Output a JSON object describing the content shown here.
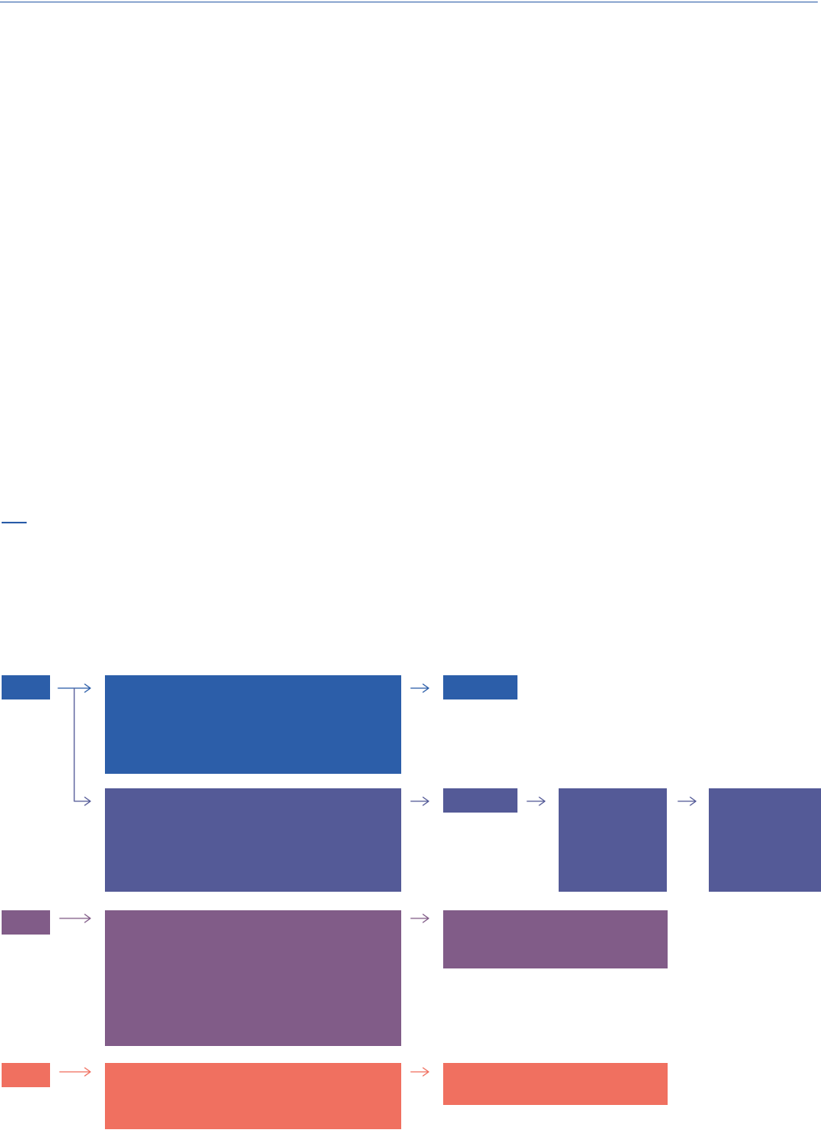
{
  "colors": {
    "rule": "#2c5ea9",
    "row_1": "#2c5ea9",
    "row_2": "#545a97",
    "row_3": "#815c88",
    "row_4": "#f07060"
  },
  "diagram": {
    "rows": [
      {
        "name": "row-1",
        "color_key": "row_1"
      },
      {
        "name": "row-2",
        "color_key": "row_2"
      },
      {
        "name": "row-3",
        "color_key": "row_3"
      },
      {
        "name": "row-4",
        "color_key": "row_4"
      }
    ]
  }
}
